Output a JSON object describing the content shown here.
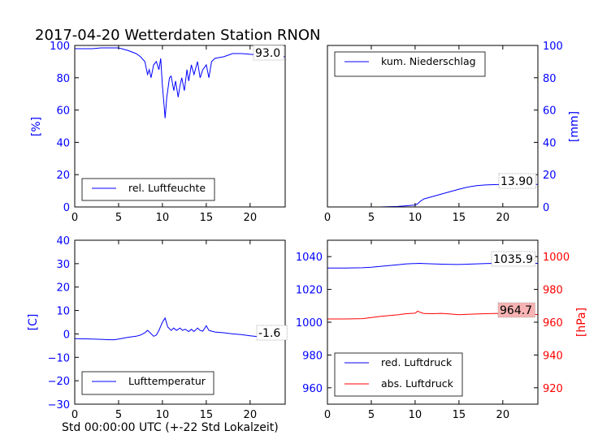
{
  "title": "2017-04-20 Wetterdaten Station RNON",
  "xlabel": "Std 00:00:00 UTC (+-22 Std Lokalzeit)",
  "colors": {
    "blue": "#0000ff",
    "red": "#ff0000",
    "label_bg_red": "#f7b3b3"
  },
  "chart_data": [
    {
      "id": "humidity",
      "type": "line",
      "ylabel": "[%]",
      "xlim": [
        0,
        24
      ],
      "ylim": [
        0,
        100
      ],
      "xticks": [
        0,
        5,
        10,
        15,
        20
      ],
      "yticks": [
        0,
        20,
        40,
        60,
        80,
        100
      ],
      "current_value": "93.0",
      "legend": "rel. Luftfeuchte",
      "series": [
        {
          "name": "rel. Luftfeuchte",
          "color": "#0000ff",
          "axis": "left",
          "x": [
            0,
            1,
            2,
            3,
            4,
            5,
            6,
            7,
            7.5,
            8,
            8.3,
            8.5,
            8.7,
            9,
            9.3,
            9.6,
            9.8,
            10,
            10.2,
            10.3,
            10.5,
            10.8,
            11,
            11.3,
            11.5,
            11.8,
            12,
            12.2,
            12.5,
            12.8,
            13,
            13.3,
            13.6,
            14,
            14.3,
            14.6,
            15,
            15.3,
            15.6,
            16,
            17,
            18,
            19,
            20,
            21,
            22,
            23,
            24
          ],
          "y": [
            98,
            98,
            98,
            98.5,
            98.5,
            98.5,
            97,
            95,
            93,
            90,
            82,
            85,
            80,
            88,
            90,
            85,
            92,
            75,
            62,
            55,
            68,
            80,
            81,
            72,
            78,
            68,
            75,
            80,
            72,
            85,
            78,
            88,
            82,
            90,
            80,
            85,
            88,
            80,
            90,
            92,
            93,
            95,
            95,
            94.5,
            94,
            93,
            93,
            93
          ]
        }
      ]
    },
    {
      "id": "precipitation",
      "type": "line",
      "ylabel": "[mm]",
      "xlim": [
        0,
        24
      ],
      "ylim": [
        0,
        100
      ],
      "xticks": [
        0,
        5,
        10,
        15,
        20
      ],
      "yticks": [
        0,
        20,
        40,
        60,
        80,
        100
      ],
      "current_value": "13.90",
      "legend": "kum. Niederschlag",
      "series": [
        {
          "name": "kum. Niederschlag",
          "color": "#0000ff",
          "axis": "right",
          "x": [
            0,
            2,
            4,
            6,
            8,
            9,
            10,
            10.3,
            10.6,
            11,
            12,
            13,
            14,
            15,
            16,
            17,
            18,
            19,
            20,
            21,
            22,
            23,
            24
          ],
          "y": [
            0,
            0,
            0,
            0,
            0.3,
            0.7,
            1.2,
            2,
            3.5,
            5,
            6.5,
            8,
            9.5,
            11,
            12.3,
            13.2,
            13.6,
            13.8,
            13.9,
            13.9,
            13.9,
            13.9,
            13.9
          ]
        }
      ]
    },
    {
      "id": "temperature",
      "type": "line",
      "ylabel": "[C]",
      "xlim": [
        0,
        24
      ],
      "ylim": [
        -30,
        40
      ],
      "xticks": [
        0,
        5,
        10,
        15,
        20
      ],
      "yticks": [
        -30,
        -20,
        -10,
        0,
        10,
        20,
        30,
        40
      ],
      "current_value": "-1.6",
      "legend": "Lufttemperatur",
      "series": [
        {
          "name": "Lufttemperatur",
          "color": "#0000ff",
          "axis": "left",
          "x": [
            0,
            1,
            2,
            3,
            4,
            4.5,
            5,
            6,
            7,
            7.5,
            8,
            8.3,
            8.6,
            9,
            9.3,
            9.6,
            10,
            10.3,
            10.6,
            11,
            11.3,
            11.6,
            12,
            12.3,
            12.6,
            13,
            13.3,
            13.6,
            14,
            14.3,
            14.6,
            15,
            15.3,
            15.6,
            16,
            17,
            18,
            19,
            20,
            21,
            22,
            23,
            24
          ],
          "y": [
            -2,
            -2.1,
            -2.2,
            -2.3,
            -2.5,
            -2.5,
            -2.2,
            -1.5,
            -1,
            -0.5,
            0.5,
            1.5,
            0.5,
            -1,
            -0.5,
            1.5,
            5,
            6.8,
            3,
            1.5,
            2.5,
            1.5,
            2.5,
            1.5,
            2,
            1,
            2,
            1,
            2.5,
            1.5,
            1.2,
            3.5,
            1.5,
            1.2,
            0.8,
            0.5,
            0,
            -0.3,
            -0.8,
            -1.2,
            -1.4,
            -1.5,
            -1.6
          ]
        }
      ]
    },
    {
      "id": "pressure",
      "type": "line",
      "xlim": [
        0,
        24
      ],
      "ylim_left": [
        950,
        1050
      ],
      "ylim_right": [
        910,
        1010
      ],
      "right_label": "[hPa]",
      "xticks": [
        0,
        5,
        10,
        15,
        20
      ],
      "yticks_left": [
        960,
        980,
        1000,
        1020,
        1040
      ],
      "yticks_right": [
        920,
        940,
        960,
        980,
        1000
      ],
      "current_value_blue": "1035.9",
      "current_value_red": "964.7",
      "series": [
        {
          "name": "red. Luftdruck",
          "color": "#0000ff",
          "axis": "left",
          "x": [
            0,
            2,
            4,
            5,
            6,
            7,
            8,
            9,
            10,
            10.5,
            11,
            12,
            13,
            14,
            15,
            16,
            17,
            18,
            19,
            20,
            21,
            22,
            23,
            24
          ],
          "y": [
            1033,
            1033,
            1033.2,
            1033.5,
            1034,
            1034.5,
            1035,
            1035.6,
            1035.8,
            1035.9,
            1035.8,
            1035.6,
            1035.4,
            1035.3,
            1035.2,
            1035.4,
            1035.6,
            1035.8,
            1035.9,
            1036,
            1036,
            1036,
            1035.9,
            1035.9
          ]
        },
        {
          "name": "abs. Luftdruck",
          "color": "#ff0000",
          "axis": "right",
          "x": [
            0,
            2,
            4,
            5,
            6,
            7,
            8,
            9,
            10,
            10.3,
            10.6,
            11,
            12,
            13,
            14,
            15,
            16,
            17,
            18,
            19,
            20,
            21,
            22,
            23,
            24
          ],
          "y": [
            962,
            962,
            962.2,
            962.8,
            963.5,
            964,
            964.5,
            965.2,
            965.5,
            966.8,
            966,
            965.3,
            965.2,
            965.4,
            965,
            964.6,
            964.8,
            965,
            965.2,
            965.3,
            965.4,
            965,
            964.9,
            964.8,
            964.7
          ]
        }
      ]
    }
  ]
}
